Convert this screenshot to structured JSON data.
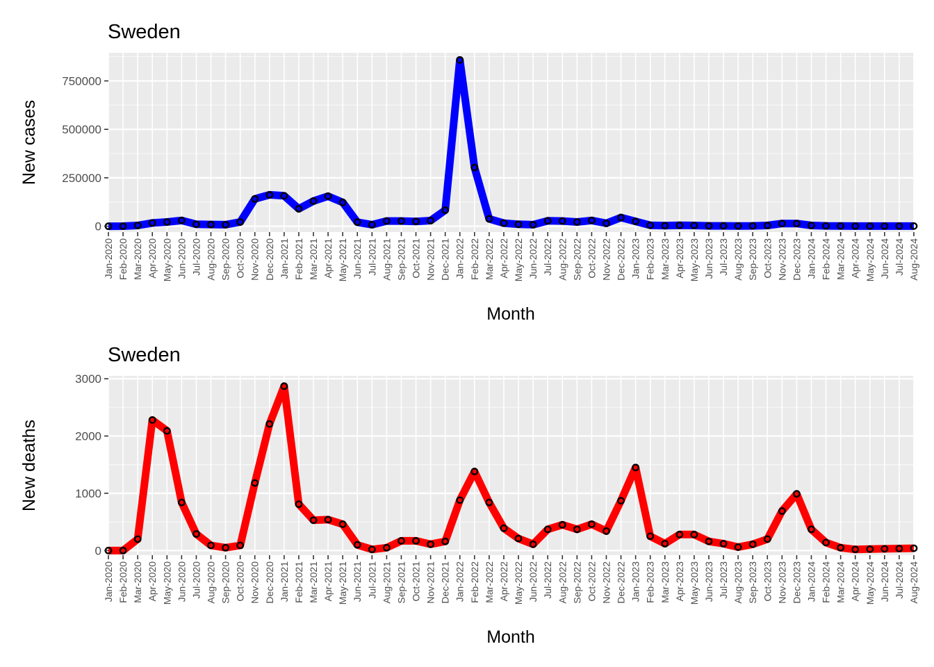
{
  "chart_data": [
    {
      "type": "line",
      "title": "Sweden",
      "xlabel": "Month",
      "ylabel": "New cases",
      "ylim": [
        -30000,
        895000
      ],
      "yticks": [
        0,
        250000,
        500000,
        750000
      ],
      "ytick_labels": [
        "0",
        "250000",
        "500000",
        "750000"
      ],
      "line_color": "#0000ff",
      "point_color": "#000000",
      "grid": true,
      "panel_background": "#ebebeb",
      "categories": [
        "Jan-2020",
        "Feb-2020",
        "Mar-2020",
        "Apr-2020",
        "May-2020",
        "Jun-2020",
        "Jul-2020",
        "Aug-2020",
        "Sep-2020",
        "Oct-2020",
        "Nov-2020",
        "Dec-2020",
        "Jan-2021",
        "Feb-2021",
        "Mar-2021",
        "Apr-2021",
        "May-2021",
        "Jun-2021",
        "Jul-2021",
        "Aug-2021",
        "Sep-2021",
        "Oct-2021",
        "Nov-2021",
        "Dec-2021",
        "Jan-2022",
        "Feb-2022",
        "Mar-2022",
        "Apr-2022",
        "May-2022",
        "Jun-2022",
        "Jul-2022",
        "Aug-2022",
        "Sep-2022",
        "Oct-2022",
        "Nov-2022",
        "Dec-2022",
        "Jan-2023",
        "Feb-2023",
        "Mar-2023",
        "Apr-2023",
        "May-2023",
        "Jun-2023",
        "Jul-2023",
        "Aug-2023",
        "Sep-2023",
        "Oct-2023",
        "Nov-2023",
        "Dec-2023",
        "Jan-2024",
        "Feb-2024",
        "Mar-2024",
        "Apr-2024",
        "May-2024",
        "Jun-2024",
        "Jul-2024",
        "Aug-2024"
      ],
      "values": [
        0,
        500,
        4000,
        17000,
        22000,
        30000,
        10000,
        9000,
        8000,
        22000,
        141000,
        162000,
        157000,
        90000,
        130000,
        155000,
        123000,
        21000,
        8000,
        27000,
        27000,
        25000,
        29000,
        83000,
        858000,
        303000,
        38000,
        16000,
        10000,
        8000,
        28000,
        27000,
        22000,
        30000,
        15000,
        45000,
        25000,
        5000,
        3000,
        5000,
        4000,
        2000,
        2000,
        1500,
        2000,
        4000,
        14000,
        14000,
        4000,
        2000,
        1500,
        1000,
        1000,
        1000,
        1000,
        1000
      ]
    },
    {
      "type": "line",
      "title": "Sweden",
      "xlabel": "Month",
      "ylabel": "New deaths",
      "ylim": [
        -80,
        3050
      ],
      "yticks": [
        0,
        1000,
        2000,
        3000
      ],
      "ytick_labels": [
        "0",
        "1000",
        "2000",
        "3000"
      ],
      "line_color": "#ff0000",
      "point_color": "#000000",
      "grid": true,
      "panel_background": "#ebebeb",
      "categories": [
        "Jan-2020",
        "Feb-2020",
        "Mar-2020",
        "Apr-2020",
        "May-2020",
        "Jun-2020",
        "Jul-2020",
        "Aug-2020",
        "Sep-2020",
        "Oct-2020",
        "Nov-2020",
        "Dec-2020",
        "Jan-2021",
        "Feb-2021",
        "Mar-2021",
        "Apr-2021",
        "May-2021",
        "Jun-2021",
        "Jul-2021",
        "Aug-2021",
        "Sep-2021",
        "Oct-2021",
        "Nov-2021",
        "Dec-2021",
        "Jan-2022",
        "Feb-2022",
        "Mar-2022",
        "Apr-2022",
        "May-2022",
        "Jun-2022",
        "Jul-2022",
        "Aug-2022",
        "Sep-2022",
        "Oct-2022",
        "Nov-2022",
        "Dec-2022",
        "Jan-2023",
        "Feb-2023",
        "Mar-2023",
        "Apr-2023",
        "May-2023",
        "Jun-2023",
        "Jul-2023",
        "Aug-2023",
        "Sep-2023",
        "Oct-2023",
        "Nov-2023",
        "Dec-2023",
        "Jan-2024",
        "Feb-2024",
        "Mar-2024",
        "Apr-2024",
        "May-2024",
        "Jun-2024",
        "Jul-2024",
        "Aug-2024"
      ],
      "values": [
        0,
        0,
        200,
        2280,
        2090,
        840,
        290,
        90,
        50,
        90,
        1180,
        2210,
        2870,
        810,
        530,
        540,
        460,
        100,
        20,
        50,
        170,
        170,
        110,
        160,
        880,
        1380,
        840,
        390,
        210,
        110,
        370,
        450,
        370,
        460,
        340,
        870,
        1450,
        250,
        120,
        280,
        280,
        160,
        120,
        60,
        110,
        200,
        690,
        990,
        370,
        140,
        50,
        20,
        25,
        30,
        35,
        40
      ]
    }
  ]
}
